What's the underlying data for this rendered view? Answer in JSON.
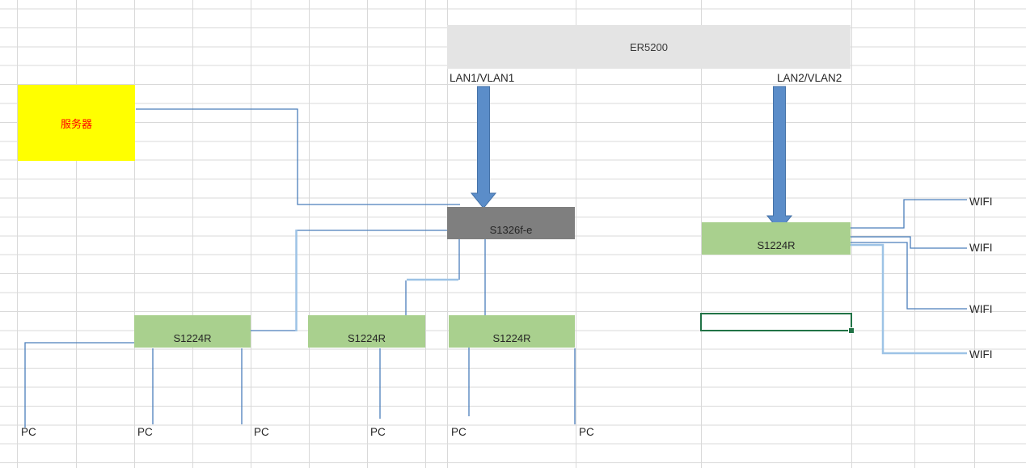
{
  "colors": {
    "grid_line": "#d9d9d9",
    "router_fill": "#e4e4e4",
    "server_fill": "#ffff00",
    "server_text": "#ff0000",
    "core_switch_fill": "#7f7f7f",
    "switch_fill": "#a9d08e",
    "connector": "#4a7ebb",
    "connector_highlight": "#9dc3e6",
    "arrow_fill": "#5b8dc9",
    "arrow_stroke": "#4472a8",
    "selection_border": "#217346",
    "label_text": "#262626"
  },
  "diagram": {
    "router": {
      "label": "ER5200"
    },
    "uplinks": [
      {
        "label": "LAN1/VLAN1"
      },
      {
        "label": "LAN2/VLAN2"
      }
    ],
    "server": {
      "label": "服务器"
    },
    "core_switch": {
      "label": "S1326f-e"
    },
    "access_switches": [
      {
        "label": "S1224R"
      },
      {
        "label": "S1224R"
      },
      {
        "label": "S1224R"
      },
      {
        "label": "S1224R"
      }
    ],
    "wifi_labels": [
      {
        "label": "WIFI"
      },
      {
        "label": "WIFI"
      },
      {
        "label": "WIFI"
      },
      {
        "label": "WIFI"
      }
    ],
    "pc_labels": [
      {
        "label": "PC"
      },
      {
        "label": "PC"
      },
      {
        "label": "PC"
      },
      {
        "label": "PC"
      },
      {
        "label": "PC"
      },
      {
        "label": "PC"
      }
    ]
  }
}
